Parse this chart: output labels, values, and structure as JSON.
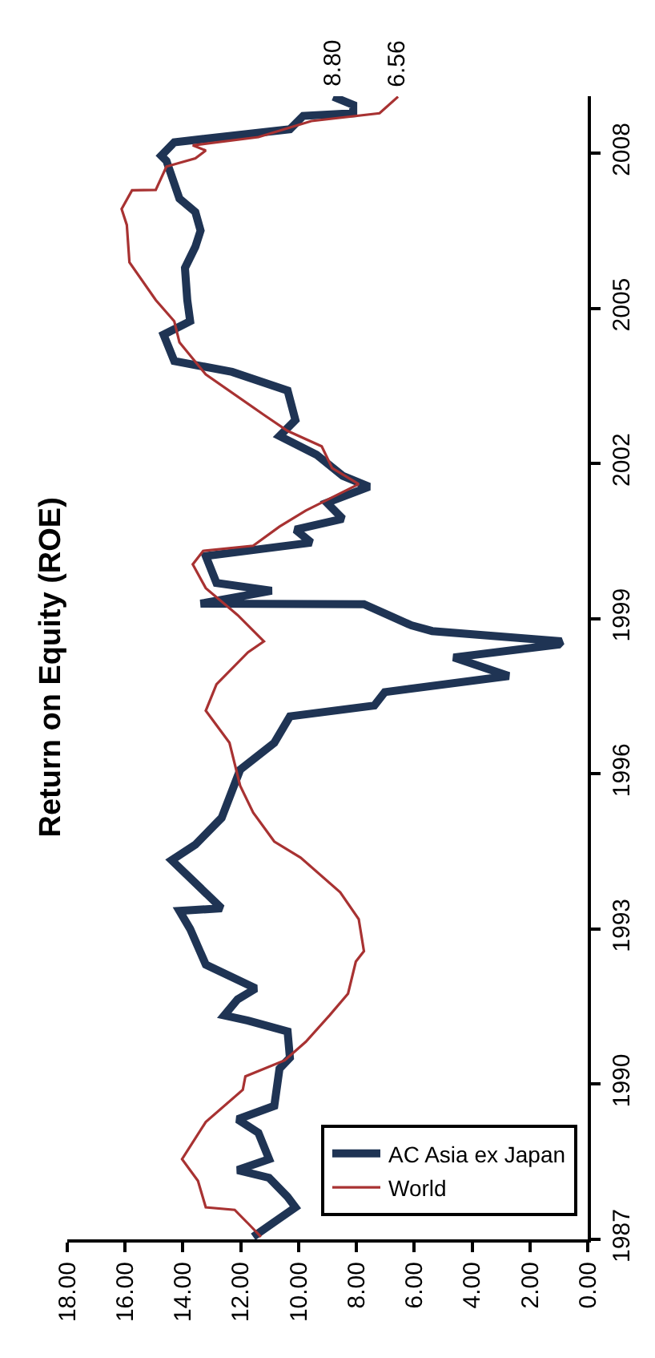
{
  "chart_data": {
    "type": "line",
    "title": "Return on Equity (ROE)",
    "ylim": [
      1987,
      2009.1
    ],
    "yticks": [
      1987,
      1990,
      1993,
      1996,
      1999,
      2002,
      2005,
      2008
    ],
    "xlim": [
      18,
      0
    ],
    "xticks": [
      {
        "value": 0,
        "label": "0.00"
      },
      {
        "value": 2,
        "label": "2.00"
      },
      {
        "value": 4,
        "label": "4.00"
      },
      {
        "value": 6,
        "label": "6.00"
      },
      {
        "value": 8,
        "label": "8.00"
      },
      {
        "value": 10,
        "label": "10.00"
      },
      {
        "value": 12,
        "label": "12.00"
      },
      {
        "value": 14,
        "label": "14.00"
      },
      {
        "value": 16,
        "label": "16.00"
      },
      {
        "value": 18,
        "label": "18.00"
      }
    ],
    "legend": "bottom right",
    "marker": "none",
    "line_style": "solid",
    "series": [
      {
        "name": "AC Asia ex Japan",
        "color": "#1f3454",
        "values": [
          1987.05,
          1987.62,
          1987.82,
          1988.19,
          1988.34,
          1988.55,
          1989.06,
          1989.32,
          1989.58,
          1990.3,
          1990.51,
          1991.02,
          1991.23,
          1991.33,
          1991.64,
          1991.85,
          1992.31,
          1993.0,
          1993.35,
          1993.4,
          1994.33,
          1994.63,
          1995.15,
          1996.08,
          1996.6,
          1997.11,
          1997.32,
          1997.58,
          1997.89,
          1998.25,
          1998.5,
          1998.56,
          1998.76,
          1998.87,
          1999.28,
          1999.29,
          1999.54,
          1999.69,
          2000.21,
          2000.47,
          2000.72,
          2000.93,
          2001.24,
          2001.55,
          2001.76,
          2002.17,
          2002.53,
          2002.84,
          2003.41,
          2003.77,
          2003.98,
          2004.49,
          2004.75,
          2005.16,
          2005.78,
          2006.19,
          2006.5,
          2006.86,
          2007.12,
          2007.85,
          2007.95,
          2008.21,
          2008.46,
          2008.72,
          2008.77,
          2008.93,
          2009.09
        ],
        "x": [
          11.57,
          10.11,
          10.38,
          11.02,
          12.11,
          11.02,
          11.39,
          12.11,
          10.84,
          10.66,
          10.3,
          10.38,
          11.75,
          12.57,
          12.11,
          11.48,
          13.21,
          13.75,
          14.12,
          12.66,
          14.39,
          13.57,
          12.66,
          12.02,
          10.84,
          10.3,
          7.38,
          7.02,
          2.73,
          4.64,
          1.01,
          0.91,
          5.38,
          6.1,
          7.74,
          13.39,
          10.93,
          12.84,
          13.21,
          9.56,
          10.11,
          8.47,
          9.02,
          7.56,
          8.47,
          9.38,
          10.66,
          10.11,
          10.38,
          12.3,
          14.3,
          14.67,
          13.75,
          13.85,
          13.93,
          13.57,
          13.39,
          13.57,
          14.12,
          14.57,
          14.75,
          14.3,
          10.3,
          9.84,
          8.11,
          8.11,
          8.8
        ]
      },
      {
        "name": "World",
        "color": "#a83232",
        "values": [
          1987.05,
          1987.31,
          1987.57,
          1987.62,
          1988.13,
          1988.55,
          1989.27,
          1989.89,
          1990.15,
          1990.46,
          1990.82,
          1991.33,
          1991.75,
          1992.37,
          1992.57,
          1993.19,
          1993.71,
          1994.38,
          1994.69,
          1995.25,
          1995.77,
          1996.6,
          1997.22,
          1997.73,
          1998.35,
          1998.56,
          1999.07,
          1999.59,
          2000.05,
          2000.31,
          2000.41,
          2000.78,
          2001.09,
          2001.6,
          2001.91,
          2002.33,
          2002.63,
          2002.94,
          2003.72,
          2004.34,
          2004.75,
          2005.16,
          2005.89,
          2006.61,
          2006.92,
          2007.28,
          2007.29,
          2007.74,
          2007.9,
          2008.05,
          2008.15,
          2008.31,
          2008.62,
          2008.77,
          2009.09
        ],
        "x": [
          11.3,
          11.75,
          12.21,
          13.21,
          13.48,
          14.03,
          13.21,
          11.93,
          11.84,
          10.48,
          9.75,
          8.93,
          8.29,
          8.02,
          7.74,
          7.92,
          8.56,
          9.93,
          10.84,
          11.57,
          12.02,
          12.39,
          13.21,
          12.84,
          11.75,
          11.2,
          12.11,
          13.21,
          13.66,
          13.3,
          11.57,
          10.66,
          9.75,
          7.92,
          8.84,
          9.2,
          10.38,
          11.2,
          13.21,
          14.12,
          14.3,
          14.94,
          15.85,
          15.94,
          16.12,
          15.76,
          14.94,
          14.57,
          13.57,
          13.21,
          13.66,
          11.39,
          9.56,
          7.2,
          6.56
        ]
      }
    ],
    "annotations": [
      {
        "text": "8.80",
        "x": 8.8,
        "y": 2009.09
      },
      {
        "text": "6.56",
        "x": 6.56,
        "y": 2009.09
      }
    ]
  }
}
